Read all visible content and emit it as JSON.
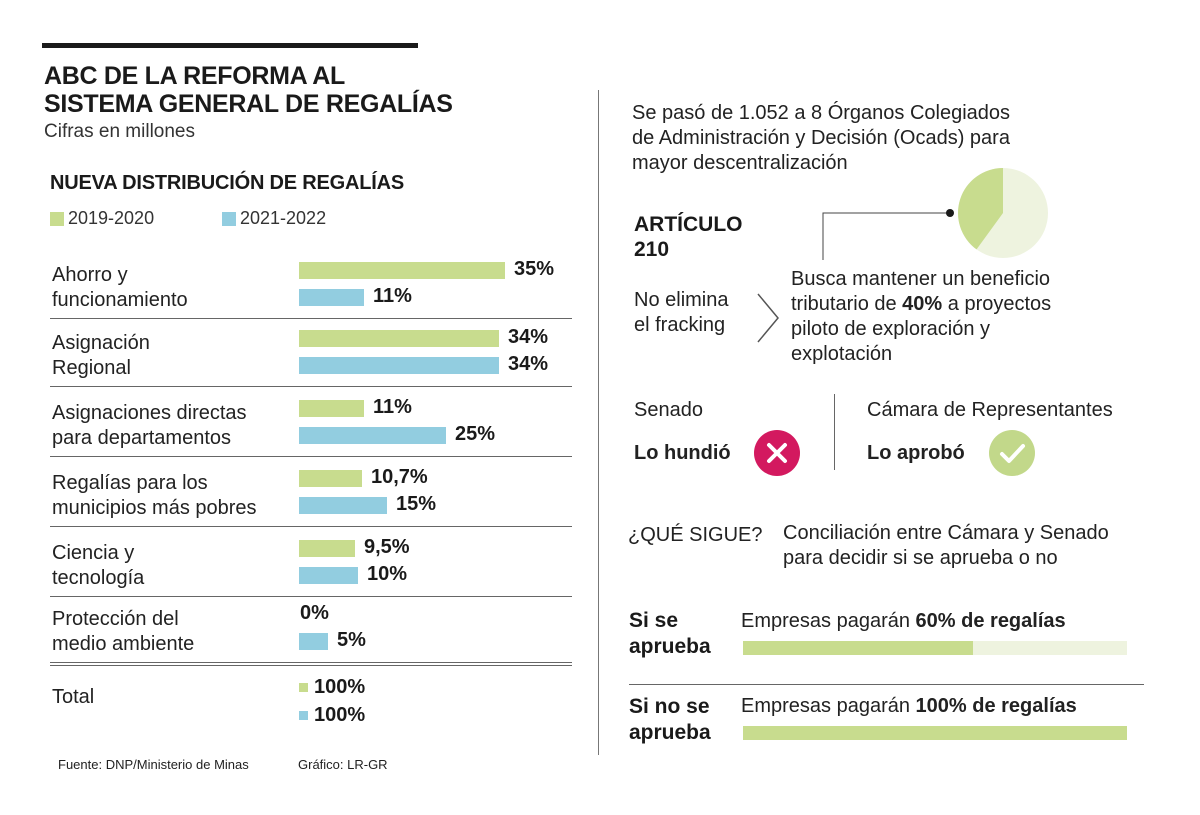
{
  "header": {
    "title_line1": "ABC DE LA REFORMA AL",
    "title_line2": "SISTEMA GENERAL DE REGALÍAS",
    "subtitle": "Cifras en millones"
  },
  "colors": {
    "green": "#c8dc8e",
    "blue": "#92cde0",
    "pink": "#d3195f",
    "light_green": "#eef3df"
  },
  "chart_data": {
    "type": "bar",
    "title": "NUEVA DISTRIBUCIÓN DE REGALÍAS",
    "xlabel": "",
    "ylabel": "",
    "ylim": [
      0,
      35
    ],
    "categories": [
      [
        "Ahorro y",
        "funcionamiento"
      ],
      [
        "Asignación",
        "Regional"
      ],
      [
        "Asignaciones directas",
        "para departamentos"
      ],
      [
        "Regalías para los",
        "municipios más pobres"
      ],
      [
        "Ciencia y",
        "tecnología"
      ],
      [
        "Protección del",
        "medio ambiente"
      ]
    ],
    "series": [
      {
        "name": "2019-2020",
        "values": [
          35,
          34,
          11,
          10.7,
          9.5,
          0
        ],
        "labels": [
          "35%",
          "34%",
          "11%",
          "10,7%",
          "9,5%",
          "0%"
        ]
      },
      {
        "name": "2021-2022",
        "values": [
          11,
          34,
          25,
          15,
          10,
          5
        ],
        "labels": [
          "11%",
          "34%",
          "25%",
          "15%",
          "10%",
          "5%"
        ]
      }
    ],
    "total": {
      "label": "Total",
      "values": [
        "100%",
        "100%"
      ]
    }
  },
  "footer": {
    "source": "Fuente: DNP/Ministerio de Minas",
    "credit": "Gráfico: LR-GR"
  },
  "ocads": {
    "line1": "Se pasó de 1.052 a 8 Órganos Colegiados",
    "line2": "de Administración y Decisión (Ocads) para",
    "line3": "mayor descentralización",
    "pie_share_percent": 40
  },
  "articulo": {
    "label1": "ARTÍCULO",
    "label2": "210",
    "no_fracking_1": "No elimina",
    "no_fracking_2": "el fracking",
    "desc_line1": "Busca mantener un beneficio",
    "desc_line2_pre": "tributario de ",
    "desc_line2_bold": "40%",
    "desc_line2_post": " a proyectos",
    "desc_line3": "piloto de exploración y",
    "desc_line4": "explotación"
  },
  "votes": {
    "senado": "Senado",
    "senado_result": "Lo hundió",
    "camara": "Cámara de Representantes",
    "camara_result": "Lo aprobó"
  },
  "next": {
    "label": "¿QUÉ SIGUE?",
    "line1": "Conciliación entre Cámara y Senado",
    "line2": "para decidir si se aprueba o no"
  },
  "outcomes": [
    {
      "head1": "Si se",
      "head2": "aprueba",
      "text_pre": "Empresas pagarán ",
      "text_bold": "60% de regalías",
      "percent": 60
    },
    {
      "head1": "Si no se",
      "head2": "aprueba",
      "text_pre": "Empresas pagarán ",
      "text_bold": "100% de regalías",
      "percent": 100
    }
  ]
}
